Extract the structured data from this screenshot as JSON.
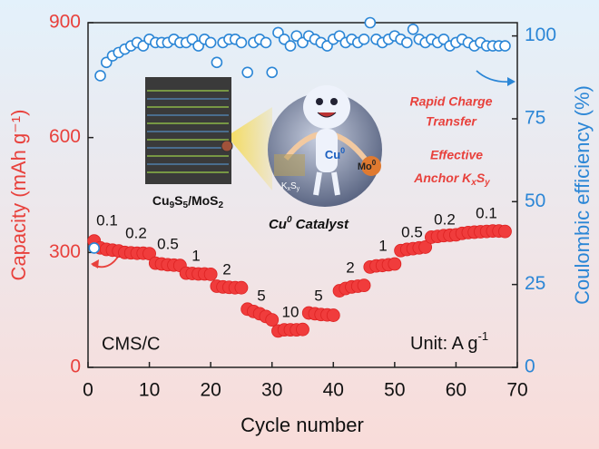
{
  "chart_data": {
    "type": "scatter",
    "x_label": "Cycle number",
    "y_label": "Capacity (mAh g⁻¹)",
    "y2_label": "Coulombic efficiency (%)",
    "xlim": [
      0,
      70
    ],
    "xticks": [
      0,
      10,
      20,
      30,
      40,
      50,
      60,
      70
    ],
    "ylim": [
      0,
      900
    ],
    "yticks": [
      0,
      300,
      600,
      900
    ],
    "y2lim": [
      0,
      104
    ],
    "y2ticks": [
      0,
      25,
      50,
      75,
      100
    ],
    "x": [
      1,
      2,
      3,
      4,
      5,
      6,
      7,
      8,
      9,
      10,
      11,
      12,
      13,
      14,
      15,
      16,
      17,
      18,
      19,
      20,
      21,
      22,
      23,
      24,
      25,
      26,
      27,
      28,
      29,
      30,
      31,
      32,
      33,
      34,
      35,
      36,
      37,
      38,
      39,
      40,
      41,
      42,
      43,
      44,
      45,
      46,
      47,
      48,
      49,
      50,
      51,
      52,
      53,
      54,
      55,
      56,
      57,
      58,
      59,
      60,
      61,
      62,
      63,
      64,
      65,
      66,
      67,
      68
    ],
    "series": [
      {
        "color": "#f03c3c",
        "axis": "y",
        "values": [
          330,
          312,
          308,
          306,
          304,
          300,
          299,
          298,
          298,
          297,
          272,
          270,
          268,
          267,
          266,
          246,
          245,
          244,
          244,
          243,
          212,
          210,
          209,
          208,
          208,
          152,
          146,
          140,
          133,
          124,
          95,
          98,
          98,
          98,
          99,
          142,
          140,
          138,
          137,
          136,
          200,
          206,
          210,
          212,
          214,
          262,
          265,
          266,
          268,
          270,
          305,
          308,
          310,
          312,
          314,
          340,
          342,
          344,
          345,
          346,
          350,
          352,
          353,
          354,
          355,
          356,
          356,
          355
        ]
      },
      {
        "color": "#2b86d6",
        "axis": "y2",
        "values": [
          36,
          88,
          92,
          94,
          95,
          96,
          97,
          98,
          97,
          99,
          98,
          98,
          98,
          99,
          98,
          98,
          99,
          97,
          99,
          98,
          92,
          98,
          99,
          99,
          98,
          89,
          98,
          99,
          98,
          89,
          101,
          99,
          97,
          100,
          98,
          100,
          99,
          98,
          97,
          99,
          100,
          98,
          99,
          98,
          99,
          104,
          99,
          98,
          99,
          100,
          99,
          98,
          102,
          99,
          98,
          99,
          98,
          99,
          97,
          98,
          99,
          98,
          97,
          98,
          97,
          97,
          97,
          97
        ]
      }
    ],
    "rate_labels": [
      "0.1",
      "0.2",
      "0.5",
      "1",
      "2",
      "5",
      "10",
      "5",
      "2",
      "1",
      "0.5",
      "0.2",
      "0.1"
    ],
    "sample_label": "CMS/C",
    "unit_label": [
      "Unit: A g",
      "-1"
    ],
    "structure_label": [
      "Cu",
      "9",
      "S",
      "5",
      "/MoS",
      "2"
    ],
    "catalyst_label": [
      "Cu",
      "0",
      " Catalyst"
    ],
    "cu_label": [
      "Cu",
      "0"
    ],
    "mo_label": [
      "Mo",
      "0"
    ],
    "kxsy_label": [
      "K",
      "x",
      "S",
      "y"
    ],
    "note_transfer": [
      "Rapid Charge",
      "Transfer"
    ],
    "note_anchor": [
      "Effective",
      "Anchor K",
      "x",
      "S",
      "y"
    ]
  }
}
